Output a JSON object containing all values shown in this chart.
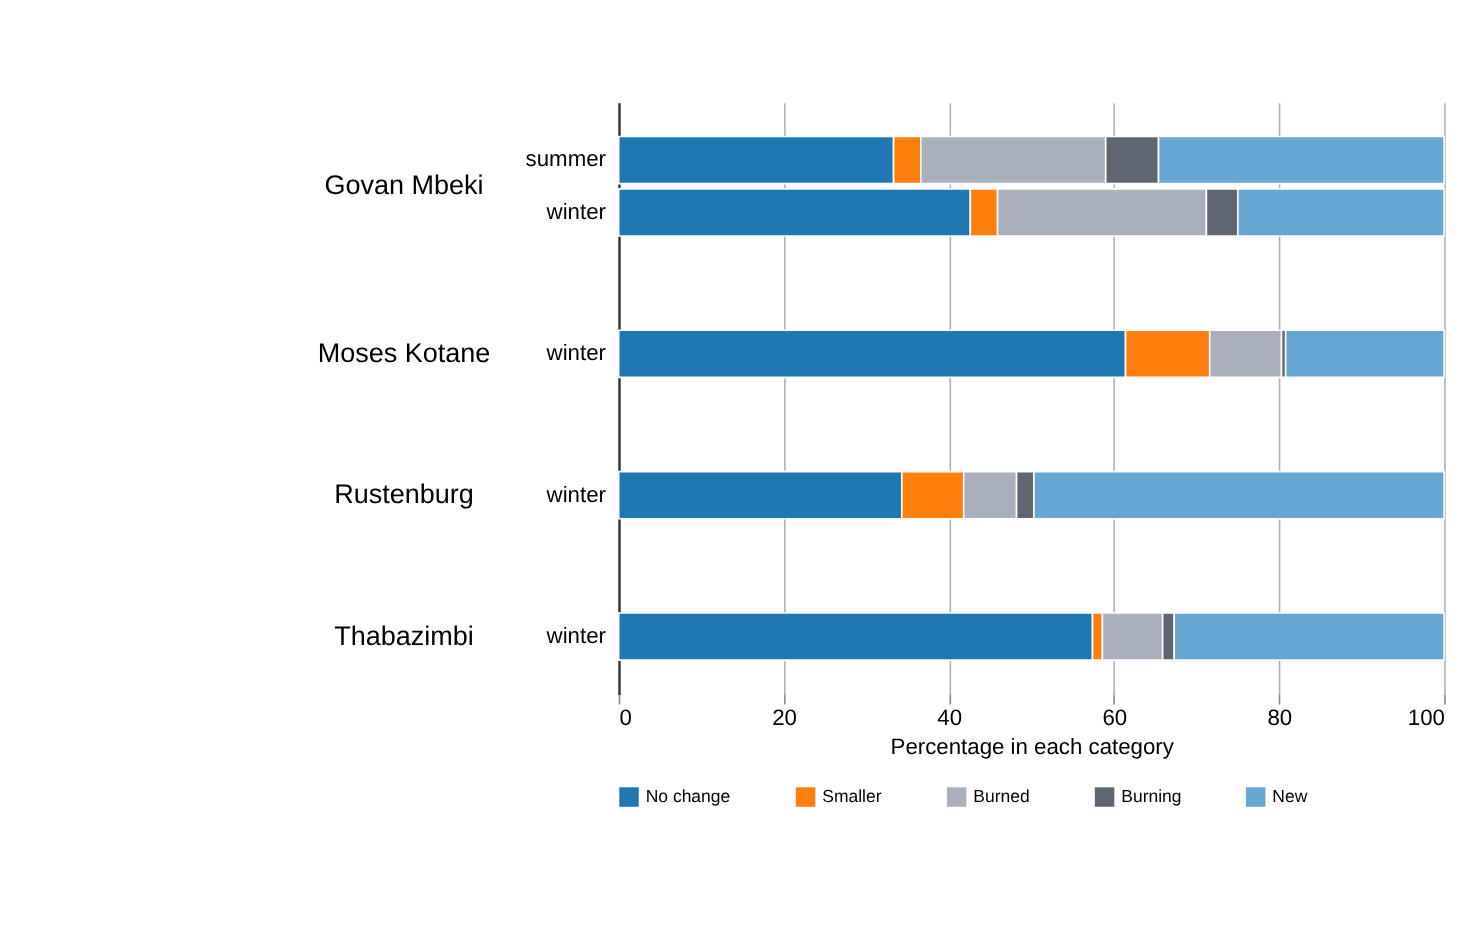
{
  "chart_data": {
    "type": "bar",
    "orientation": "horizontal",
    "stacked": true,
    "categories": [
      "summer",
      "winter",
      "winter",
      "winter",
      "winter"
    ],
    "annotations": [
      "Govan Mbeki",
      "Moses Kotane",
      "Rustenburg",
      "Thabazimbi"
    ],
    "series": [
      {
        "name": "No change",
        "color": "#1f77b4",
        "values": [
          33.3,
          42.6,
          61.4,
          34.3,
          57.4
        ]
      },
      {
        "name": "Smaller",
        "color": "#ff7f0e",
        "values": [
          3.3,
          3.3,
          10.2,
          7.5,
          1.2
        ]
      },
      {
        "name": "Burned",
        "color": "#a9afbb",
        "values": [
          22.4,
          25.3,
          8.7,
          6.4,
          7.3
        ]
      },
      {
        "name": "Burning",
        "color": "#5f6672",
        "values": [
          6.4,
          3.8,
          0.5,
          2.1,
          1.4
        ]
      },
      {
        "name": "New",
        "color": "#66a6d2",
        "values": [
          34.6,
          25.0,
          19.2,
          49.7,
          32.7
        ]
      }
    ],
    "xlabel": "Percentage in each category",
    "xlim": [
      0,
      100
    ],
    "xticks": [
      0,
      20,
      40,
      60,
      80,
      100
    ],
    "grid": "x",
    "legend": "bottom"
  }
}
